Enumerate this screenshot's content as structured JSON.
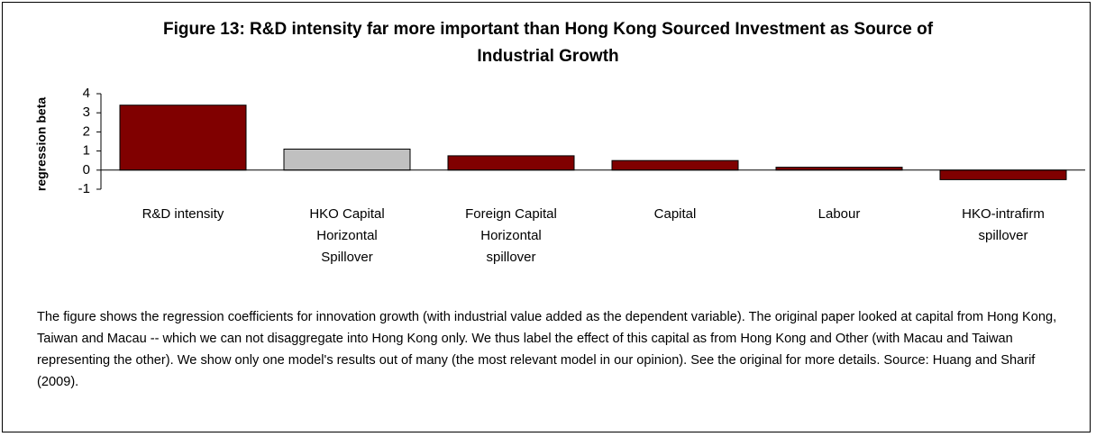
{
  "chart_data": {
    "type": "bar",
    "title": "Figure 13: R&D intensity far more important than Hong Kong Sourced Investment as Source of Industrial Growth",
    "ylabel": "regression beta",
    "categories": [
      "R&D intensity",
      "HKO Capital Horizontal Spillover",
      "Foreign Capital Horizontal spillover",
      "Capital",
      "Labour",
      "HKO-intrafirm spillover"
    ],
    "values": [
      3.4,
      1.1,
      0.75,
      0.5,
      0.15,
      -0.5
    ],
    "colors": [
      "#800000",
      "#c0c0c0",
      "#800000",
      "#800000",
      "#800000",
      "#800000"
    ],
    "ylim": [
      -1,
      4
    ],
    "yticks": [
      -1,
      0,
      1,
      2,
      3,
      4
    ],
    "note": "The figure shows the regression coefficients for innovation growth (with industrial value added as the dependent variable). The original paper looked at capital from Hong Kong, Taiwan and Macau -- which we can not disaggregate into Hong Kong only. We thus label the effect of this capital as from Hong Kong and Other (with Macau and Taiwan representing the other). We show only one model's results out of many (the most relevant model in our opinion). See the original for more details. Source: Huang and Sharif (2009)."
  }
}
